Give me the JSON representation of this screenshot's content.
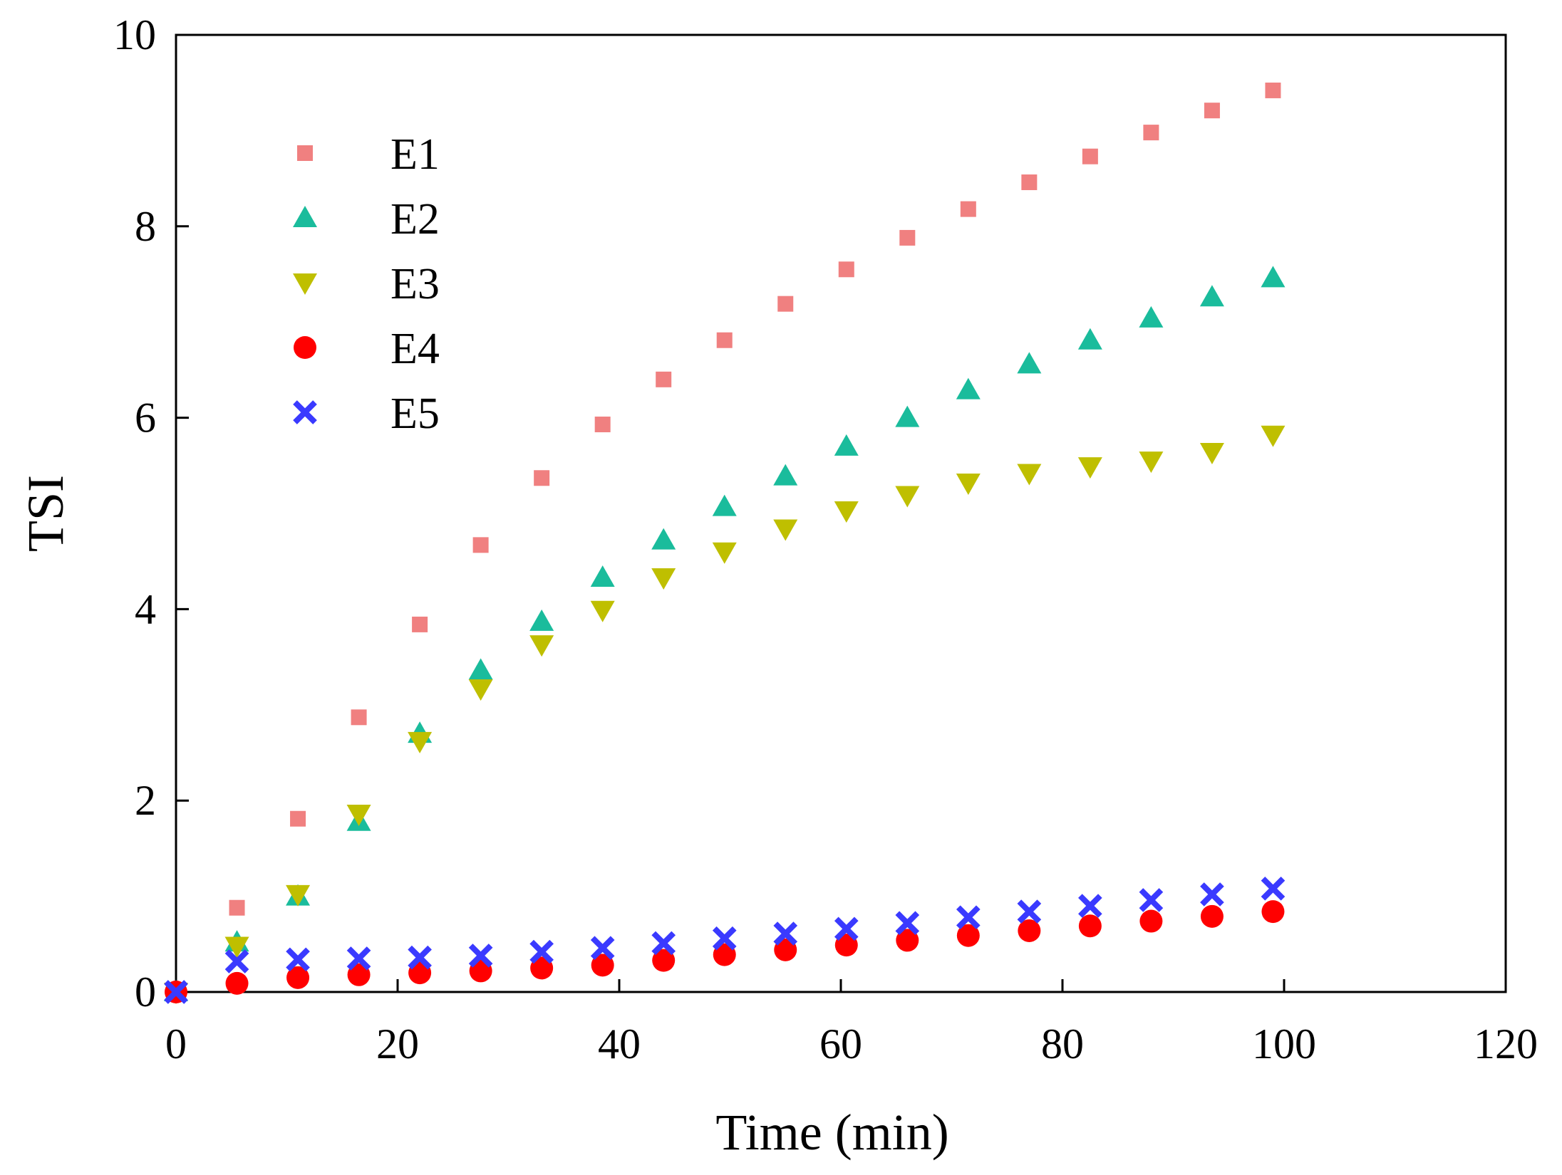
{
  "chart_data": {
    "type": "scatter",
    "title": "",
    "xlabel": "Time (min)",
    "ylabel": "TSI",
    "xlim": [
      0,
      120
    ],
    "ylim": [
      0,
      10
    ],
    "xticks": [
      0,
      20,
      40,
      60,
      80,
      100,
      120
    ],
    "yticks": [
      0,
      2,
      4,
      6,
      8,
      10
    ],
    "xtick_labels": [
      "0",
      "20",
      "40",
      "60",
      "80",
      "100",
      "120"
    ],
    "ytick_labels": [
      "0",
      "2",
      "4",
      "6",
      "8",
      "10"
    ],
    "grid": false,
    "legend_position": "top-left",
    "x": [
      0,
      5.5,
      11,
      16.5,
      22,
      27.5,
      33,
      38.5,
      44,
      49.5,
      55,
      60.5,
      66,
      71.5,
      77,
      82.5,
      88,
      93.5,
      99
    ],
    "series": [
      {
        "name": "E1",
        "marker": "square",
        "color": "#f08080",
        "values": [
          0,
          0.88,
          1.81,
          2.87,
          3.84,
          4.67,
          5.37,
          5.93,
          6.4,
          6.81,
          7.19,
          7.55,
          7.88,
          8.18,
          8.46,
          8.73,
          8.98,
          9.21,
          9.42
        ]
      },
      {
        "name": "E2",
        "marker": "triangle-up",
        "color": "#1abc9c",
        "values": [
          0,
          0.52,
          1.0,
          1.78,
          2.7,
          3.36,
          3.87,
          4.33,
          4.72,
          5.07,
          5.39,
          5.7,
          6.0,
          6.29,
          6.56,
          6.81,
          7.04,
          7.26,
          7.46
        ]
      },
      {
        "name": "E3",
        "marker": "triangle-down",
        "color": "#bfbf00",
        "values": [
          0,
          0.48,
          1.02,
          1.86,
          2.62,
          3.17,
          3.63,
          3.99,
          4.33,
          4.6,
          4.84,
          5.03,
          5.19,
          5.32,
          5.42,
          5.49,
          5.55,
          5.64,
          5.82
        ]
      },
      {
        "name": "E4",
        "marker": "circle",
        "color": "#ff0000",
        "values": [
          0,
          0.09,
          0.15,
          0.18,
          0.2,
          0.22,
          0.25,
          0.28,
          0.33,
          0.39,
          0.44,
          0.49,
          0.54,
          0.59,
          0.64,
          0.69,
          0.74,
          0.79,
          0.84
        ]
      },
      {
        "name": "E5",
        "marker": "x",
        "color": "#3a3aff",
        "values": [
          0,
          0.32,
          0.34,
          0.35,
          0.36,
          0.38,
          0.42,
          0.46,
          0.51,
          0.56,
          0.61,
          0.66,
          0.72,
          0.78,
          0.84,
          0.9,
          0.96,
          1.02,
          1.08
        ]
      }
    ]
  }
}
